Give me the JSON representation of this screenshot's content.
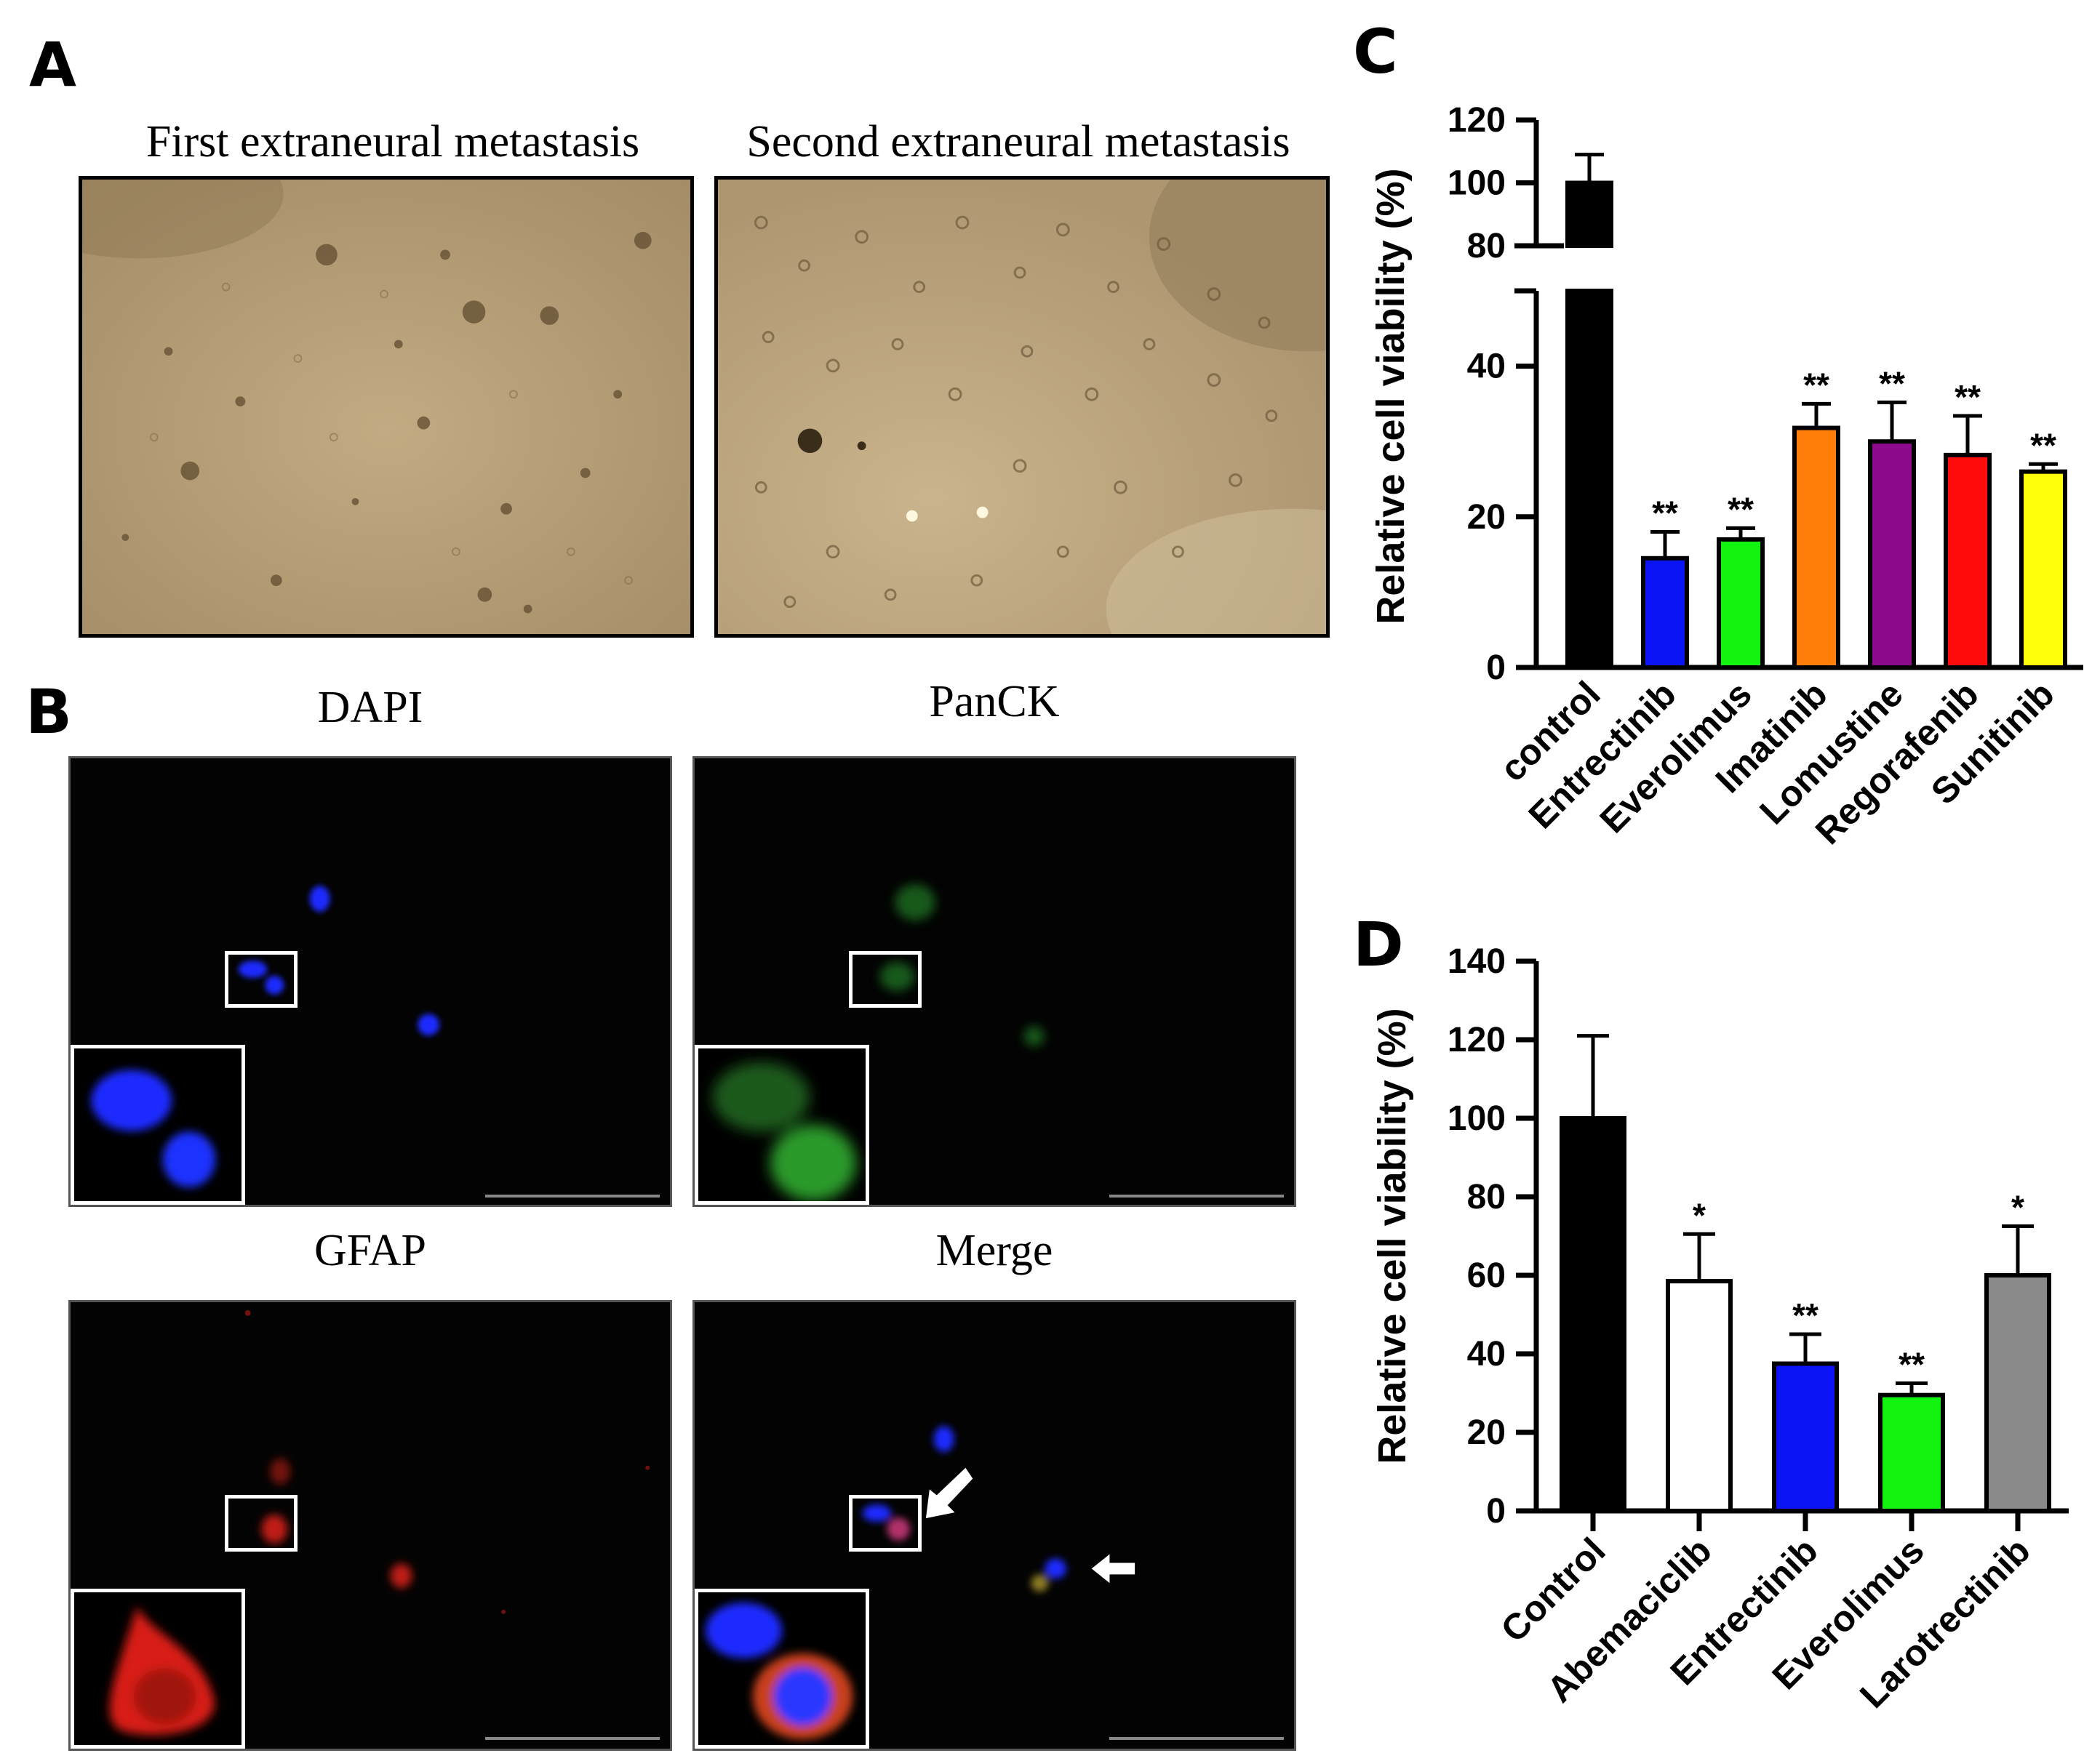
{
  "panels": {
    "a": {
      "letter": "A",
      "images": [
        {
          "caption": "First extraneural metastasis"
        },
        {
          "caption": "Second extraneural metastasis"
        }
      ]
    },
    "b": {
      "letter": "B",
      "images": [
        {
          "caption": "DAPI",
          "color": "#1a2cff"
        },
        {
          "caption": "PanCK",
          "color": "#22a82a"
        },
        {
          "caption": "GFAP",
          "color": "#e0201a"
        },
        {
          "caption": "Merge",
          "color": "#ffffff"
        }
      ]
    },
    "c": {
      "letter": "C"
    },
    "d": {
      "letter": "D"
    }
  },
  "chart_data": [
    {
      "panel": "C",
      "type": "bar",
      "ylabel": "Relative cell viability (%)",
      "xlabel": "",
      "axis_break": {
        "lower": [
          0,
          50
        ],
        "upper": [
          80,
          120
        ]
      },
      "lower_ticks": [
        0,
        20,
        40
      ],
      "upper_ticks": [
        80,
        100,
        120
      ],
      "categories": [
        "control",
        "Entrectinib",
        "Everolimus",
        "Imatinib",
        "Lomustine",
        "Regorafenib",
        "Sunitinib"
      ],
      "values": [
        100,
        14.5,
        17,
        31.8,
        30,
        28.2,
        26
      ],
      "errors": [
        9,
        3.5,
        1.5,
        3.2,
        5.2,
        5.2,
        1
      ],
      "significance": [
        "",
        "**",
        "**",
        "**",
        "**",
        "**",
        "**"
      ],
      "colors": [
        "#000000",
        "#0a14f5",
        "#12f312",
        "#ff7f0a",
        "#8d0a8d",
        "#ff0b0b",
        "#ffff0c"
      ]
    },
    {
      "panel": "D",
      "type": "bar",
      "ylabel": "Relative cell viability (%)",
      "xlabel": "",
      "ylim": [
        0,
        140
      ],
      "yticks": [
        0,
        20,
        40,
        60,
        80,
        100,
        120,
        140
      ],
      "categories": [
        "Control",
        "Abemaciclib",
        "Entrectinib",
        "Everolimus",
        "Larotrectinib"
      ],
      "values": [
        100,
        58.5,
        37.5,
        29.5,
        60
      ],
      "errors": [
        21,
        12,
        7.5,
        3,
        12.5
      ],
      "significance": [
        "",
        "*",
        "**",
        "**",
        "*"
      ],
      "colors": [
        "#000000",
        "#ffffff",
        "#0a14f5",
        "#12f312",
        "#8a8a8a"
      ]
    }
  ]
}
